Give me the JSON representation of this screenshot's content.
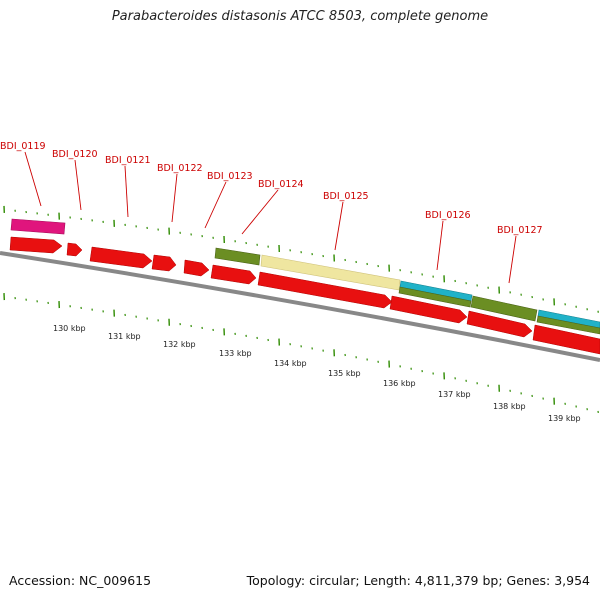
{
  "title": "Parabacteroides distasonis ATCC 8503, complete genome",
  "accession": "Accession: NC_009615",
  "summary": "Topology: circular; Length: 4,811,379 bp; Genes: 3,954",
  "colors": {
    "forward_cds": "#e81010",
    "pink_feature": "#e0157d",
    "olive_feature": "#6b8e23",
    "cyan_feature": "#20b2c8",
    "yellow_feature": "#efe6a0",
    "backbone": "#888888",
    "tick": "#2e8b00",
    "label": "#cc0000"
  },
  "gene_labels": [
    "BDI_0119",
    "BDI_0120",
    "BDI_0121",
    "BDI_0122",
    "BDI_0123",
    "BDI_0124",
    "BDI_0125",
    "BDI_0126",
    "BDI_0127"
  ],
  "kbp_labels": [
    "130 kbp",
    "131 kbp",
    "132 kbp",
    "133 kbp",
    "134 kbp",
    "135 kbp",
    "136 kbp",
    "137 kbp",
    "138 kbp",
    "139 kbp"
  ]
}
